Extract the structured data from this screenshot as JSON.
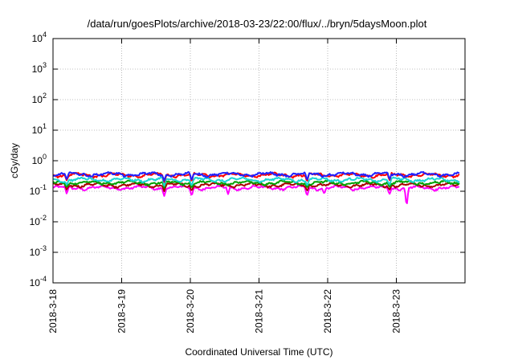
{
  "chart_data": {
    "type": "line",
    "title": "/data/run/goesPlots/archive/2018-03-23/22:00/flux/../bryn/5daysMoon.plot",
    "xlabel": "Coordinated Universal Time (UTC)",
    "ylabel": "cGy/day",
    "yscale": "log",
    "ylim": [
      "1e-4",
      "1e4"
    ],
    "y_ticks": [
      {
        "base": "10",
        "exp": "4"
      },
      {
        "base": "10",
        "exp": "3"
      },
      {
        "base": "10",
        "exp": "2"
      },
      {
        "base": "10",
        "exp": "1"
      },
      {
        "base": "10",
        "exp": "0"
      },
      {
        "base": "10",
        "exp": "-1"
      },
      {
        "base": "10",
        "exp": "-2"
      },
      {
        "base": "10",
        "exp": "-3"
      },
      {
        "base": "10",
        "exp": "-4"
      }
    ],
    "x_range": [
      "2018-03-18 00:00",
      "2018-03-23 22:00"
    ],
    "x_tick_labels": [
      "2018-3-18",
      "2018-3-19",
      "2018-3-20",
      "2018-3-21",
      "2018-3-22",
      "2018-3-23"
    ],
    "grid": true,
    "series": [
      {
        "color": "#ff00ff",
        "baseline": 0.13,
        "dips": [
          {
            "t": 0.2,
            "v": 0.08
          },
          {
            "t": 1.62,
            "v": 0.07
          },
          {
            "t": 2.02,
            "v": 0.07
          },
          {
            "t": 2.55,
            "v": 0.08
          },
          {
            "t": 3.7,
            "v": 0.07
          },
          {
            "t": 3.95,
            "v": 0.08
          },
          {
            "t": 4.9,
            "v": 0.08
          },
          {
            "t": 5.15,
            "v": 0.03
          }
        ]
      },
      {
        "color": "#aa0000",
        "baseline": 0.16,
        "dips": [
          {
            "t": 0.2,
            "v": 0.11
          },
          {
            "t": 1.62,
            "v": 0.1
          },
          {
            "t": 2.02,
            "v": 0.1
          },
          {
            "t": 3.7,
            "v": 0.1
          },
          {
            "t": 4.9,
            "v": 0.11
          }
        ]
      },
      {
        "color": "#00a000",
        "baseline": 0.19,
        "dips": [
          {
            "t": 0.2,
            "v": 0.14
          },
          {
            "t": 1.62,
            "v": 0.13
          },
          {
            "t": 2.02,
            "v": 0.13
          },
          {
            "t": 3.7,
            "v": 0.13
          },
          {
            "t": 4.9,
            "v": 0.14
          }
        ]
      },
      {
        "color": "#1ad3d3",
        "baseline": 0.24,
        "dips": [
          {
            "t": 0.2,
            "v": 0.16
          },
          {
            "t": 1.62,
            "v": 0.15
          },
          {
            "t": 2.02,
            "v": 0.15
          },
          {
            "t": 3.7,
            "v": 0.15
          },
          {
            "t": 4.9,
            "v": 0.16
          }
        ]
      },
      {
        "color": "#ff0000",
        "baseline": 0.34,
        "dips": [
          {
            "t": 0.2,
            "v": 0.22
          },
          {
            "t": 1.62,
            "v": 0.2
          },
          {
            "t": 2.02,
            "v": 0.2
          },
          {
            "t": 3.7,
            "v": 0.2
          },
          {
            "t": 4.9,
            "v": 0.22
          }
        ]
      },
      {
        "color": "#2020ff",
        "baseline": 0.36,
        "dips": [
          {
            "t": 0.2,
            "v": 0.24
          },
          {
            "t": 1.62,
            "v": 0.22
          },
          {
            "t": 2.02,
            "v": 0.22
          },
          {
            "t": 3.7,
            "v": 0.22
          },
          {
            "t": 4.9,
            "v": 0.24
          }
        ]
      }
    ]
  }
}
